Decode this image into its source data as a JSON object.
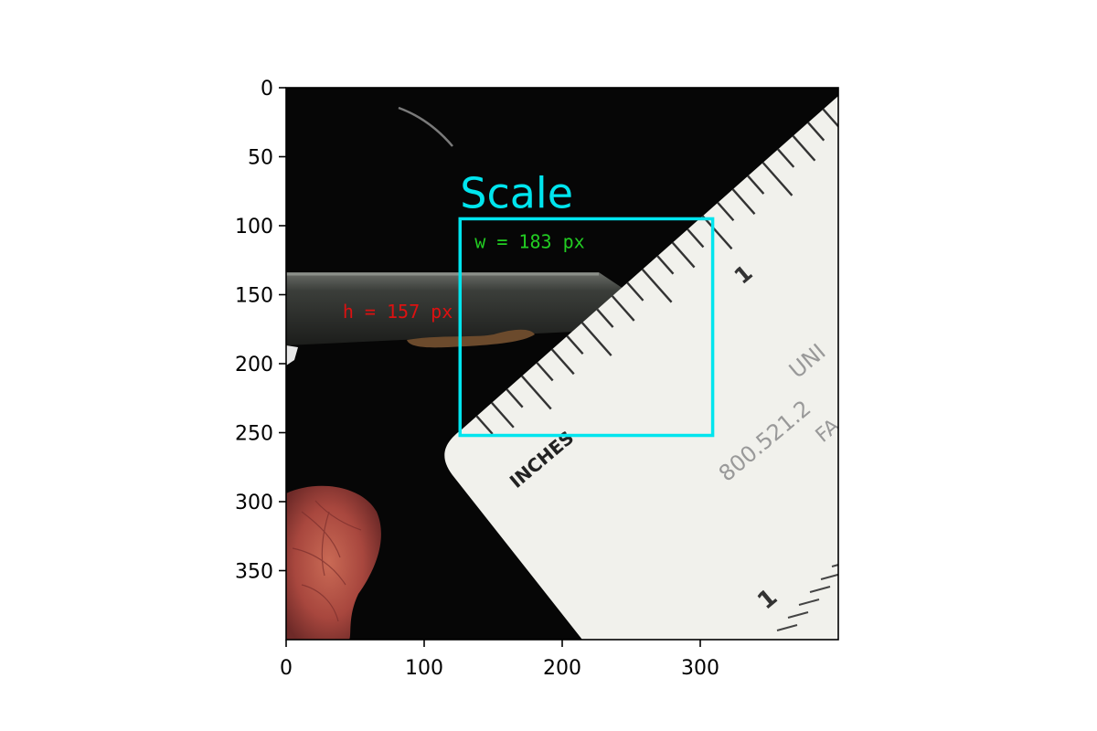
{
  "chart_data": {
    "type": "image",
    "title": "",
    "xlabel": "",
    "ylabel": "",
    "xlim": [
      0,
      400
    ],
    "ylim": [
      400,
      0
    ],
    "xticks": [
      0,
      100,
      200,
      300
    ],
    "yticks": [
      0,
      50,
      100,
      150,
      200,
      250,
      300,
      350
    ],
    "grid": false,
    "annotations": {
      "box": {
        "label": "Scale",
        "x0": 126,
        "y0": 95,
        "x1": 309,
        "y1": 252,
        "color": "#00e5ee"
      },
      "width_text": {
        "text": "w = 183 px",
        "color": "#22cc22"
      },
      "height_text": {
        "text": "h = 157 px",
        "color": "#dd1111"
      }
    },
    "image_scene": {
      "ruler_text": [
        "INCHES",
        "800.521.2",
        "UNI",
        "FA",
        "1",
        "1"
      ],
      "colors": {
        "background": "#050505",
        "ruler": "#f1f1ec",
        "leaf": "#b85a4a"
      }
    }
  }
}
